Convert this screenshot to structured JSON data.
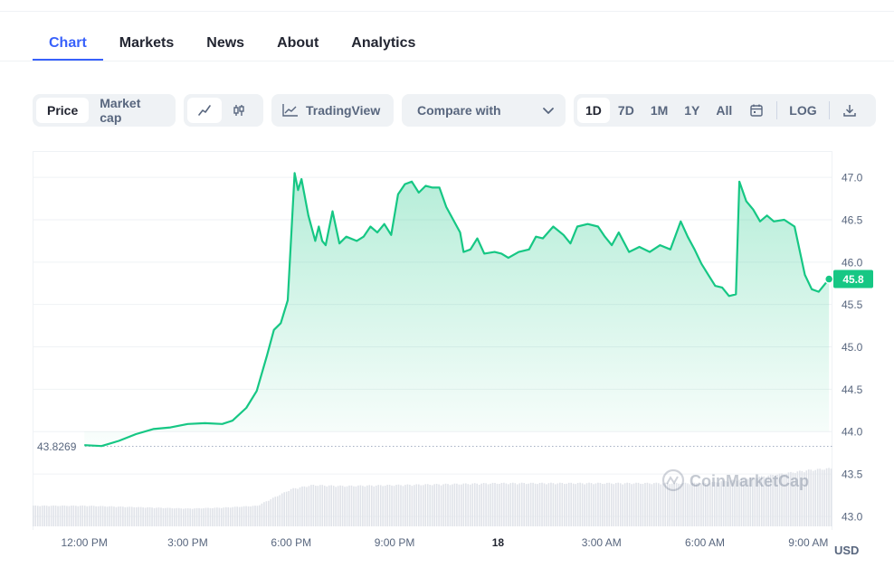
{
  "tabs": [
    {
      "label": "Chart",
      "active": true
    },
    {
      "label": "Markets"
    },
    {
      "label": "News"
    },
    {
      "label": "About"
    },
    {
      "label": "Analytics"
    }
  ],
  "toolbar": {
    "price_label": "Price",
    "market_cap_label": "Market cap",
    "line_icon": "line-chart-icon",
    "candle_icon": "candlestick-icon",
    "tradingview_label": "TradingView",
    "compare_label": "Compare with",
    "ranges": [
      "1D",
      "7D",
      "1M",
      "1Y",
      "All"
    ],
    "active_range": "1D",
    "calendar_icon": "calendar-icon",
    "log_label": "LOG",
    "download_icon": "download-icon"
  },
  "chart_data": {
    "type": "area",
    "currency": "USD",
    "watermark": "CoinMarketCap",
    "open_price_label": "43.8269",
    "open_price": 43.8269,
    "current_price_label": "45.8",
    "current_price": 45.8,
    "ylim": [
      42.85,
      47.3
    ],
    "y_ticks": [
      47.0,
      46.5,
      46.0,
      45.5,
      45.0,
      44.5,
      44.0,
      43.5,
      43.0
    ],
    "y_tick_labels": [
      "47.0",
      "46.5",
      "46.0",
      "45.5",
      "45.0",
      "44.5",
      "44.0",
      "43.5",
      "43.0"
    ],
    "x_range_hours": [
      10.5,
      33.7
    ],
    "x_ticks": [
      {
        "label": "12:00 PM",
        "h": 12,
        "bold": false
      },
      {
        "label": "3:00 PM",
        "h": 15,
        "bold": false
      },
      {
        "label": "6:00 PM",
        "h": 18,
        "bold": false
      },
      {
        "label": "9:00 PM",
        "h": 21,
        "bold": false
      },
      {
        "label": "18",
        "h": 24,
        "bold": true
      },
      {
        "label": "3:00 AM",
        "h": 27,
        "bold": false
      },
      {
        "label": "6:00 AM",
        "h": 30,
        "bold": false
      },
      {
        "label": "9:00 AM",
        "h": 33,
        "bold": false
      }
    ],
    "price_series": [
      [
        12.0,
        43.84
      ],
      [
        12.5,
        43.83
      ],
      [
        13.0,
        43.89
      ],
      [
        13.5,
        43.97
      ],
      [
        14.0,
        44.03
      ],
      [
        14.5,
        44.05
      ],
      [
        15.0,
        44.09
      ],
      [
        15.5,
        44.1
      ],
      [
        16.0,
        44.09
      ],
      [
        16.3,
        44.13
      ],
      [
        16.7,
        44.28
      ],
      [
        17.0,
        44.48
      ],
      [
        17.3,
        44.9
      ],
      [
        17.5,
        45.2
      ],
      [
        17.7,
        45.28
      ],
      [
        17.9,
        45.55
      ],
      [
        18.0,
        46.3
      ],
      [
        18.1,
        47.05
      ],
      [
        18.2,
        46.85
      ],
      [
        18.3,
        46.98
      ],
      [
        18.5,
        46.55
      ],
      [
        18.7,
        46.25
      ],
      [
        18.8,
        46.42
      ],
      [
        18.9,
        46.25
      ],
      [
        19.0,
        46.2
      ],
      [
        19.2,
        46.6
      ],
      [
        19.4,
        46.22
      ],
      [
        19.6,
        46.3
      ],
      [
        19.9,
        46.25
      ],
      [
        20.1,
        46.3
      ],
      [
        20.3,
        46.42
      ],
      [
        20.5,
        46.35
      ],
      [
        20.7,
        46.45
      ],
      [
        20.9,
        46.32
      ],
      [
        21.1,
        46.8
      ],
      [
        21.3,
        46.92
      ],
      [
        21.5,
        46.95
      ],
      [
        21.7,
        46.82
      ],
      [
        21.9,
        46.9
      ],
      [
        22.1,
        46.88
      ],
      [
        22.3,
        46.88
      ],
      [
        22.5,
        46.65
      ],
      [
        22.7,
        46.5
      ],
      [
        22.9,
        46.35
      ],
      [
        23.0,
        46.12
      ],
      [
        23.2,
        46.15
      ],
      [
        23.4,
        46.28
      ],
      [
        23.6,
        46.1
      ],
      [
        23.9,
        46.12
      ],
      [
        24.1,
        46.1
      ],
      [
        24.3,
        46.05
      ],
      [
        24.6,
        46.12
      ],
      [
        24.9,
        46.15
      ],
      [
        25.1,
        46.3
      ],
      [
        25.3,
        46.28
      ],
      [
        25.6,
        46.42
      ],
      [
        25.9,
        46.32
      ],
      [
        26.1,
        46.22
      ],
      [
        26.3,
        46.42
      ],
      [
        26.6,
        46.45
      ],
      [
        26.9,
        46.42
      ],
      [
        27.1,
        46.3
      ],
      [
        27.3,
        46.2
      ],
      [
        27.5,
        46.35
      ],
      [
        27.8,
        46.12
      ],
      [
        28.1,
        46.18
      ],
      [
        28.4,
        46.12
      ],
      [
        28.7,
        46.2
      ],
      [
        29.0,
        46.15
      ],
      [
        29.3,
        46.48
      ],
      [
        29.5,
        46.3
      ],
      [
        29.7,
        46.15
      ],
      [
        29.9,
        45.98
      ],
      [
        30.1,
        45.85
      ],
      [
        30.3,
        45.72
      ],
      [
        30.5,
        45.7
      ],
      [
        30.7,
        45.6
      ],
      [
        30.9,
        45.62
      ],
      [
        31.0,
        46.95
      ],
      [
        31.2,
        46.72
      ],
      [
        31.4,
        46.62
      ],
      [
        31.6,
        46.48
      ],
      [
        31.8,
        46.55
      ],
      [
        32.0,
        46.48
      ],
      [
        32.3,
        46.5
      ],
      [
        32.6,
        46.42
      ],
      [
        32.9,
        45.85
      ],
      [
        33.1,
        45.68
      ],
      [
        33.3,
        45.65
      ],
      [
        33.5,
        45.75
      ],
      [
        33.6,
        45.8
      ]
    ],
    "volume_series": [
      [
        10.5,
        0.22
      ],
      [
        12.0,
        0.22
      ],
      [
        13.0,
        0.21
      ],
      [
        14.0,
        0.2
      ],
      [
        15.0,
        0.19
      ],
      [
        16.0,
        0.2
      ],
      [
        17.0,
        0.22
      ],
      [
        18.0,
        0.4
      ],
      [
        18.6,
        0.44
      ],
      [
        19.5,
        0.43
      ],
      [
        21.0,
        0.44
      ],
      [
        24.0,
        0.46
      ],
      [
        27.0,
        0.46
      ],
      [
        30.0,
        0.46
      ],
      [
        31.0,
        0.5
      ],
      [
        33.0,
        0.6
      ],
      [
        33.7,
        0.62
      ]
    ]
  }
}
